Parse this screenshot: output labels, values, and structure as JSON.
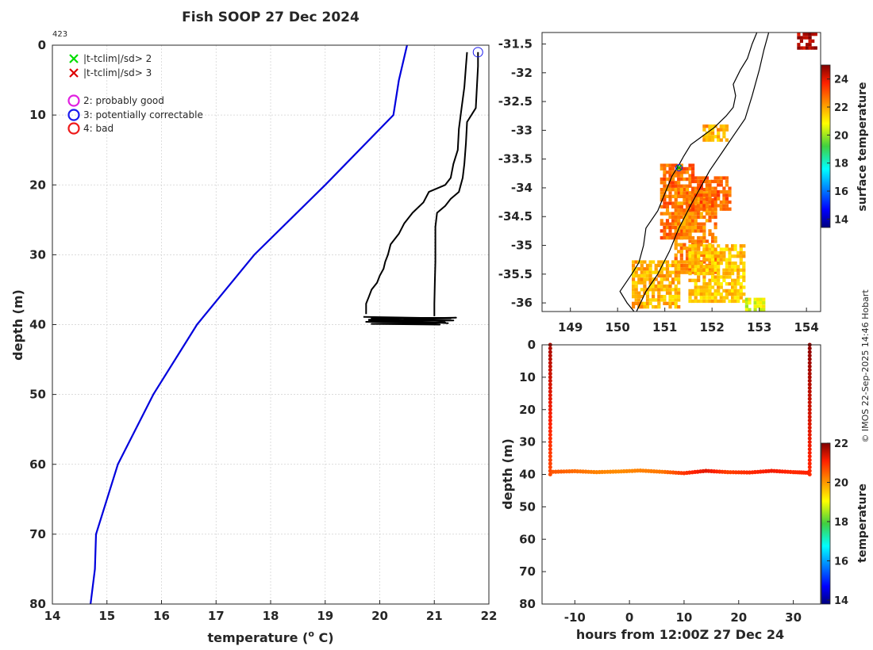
{
  "title": "Fish SOOP 27 Dec 2024",
  "profile_id": "423",
  "copyright": "© IMOS 22-Sep-2025 14:46 Hobart",
  "chart_data": [
    {
      "type": "line",
      "panel": "profile",
      "xlabel": "temperature (",
      "xlabel_sup": "o",
      "xlabel_tail": " C)",
      "ylabel": "depth (m)",
      "xlim": [
        14,
        22
      ],
      "ylim": [
        80,
        0
      ],
      "y_reversed": true,
      "grid": true,
      "xticks": [
        "14",
        "15",
        "16",
        "17",
        "18",
        "19",
        "20",
        "21",
        "22"
      ],
      "yticks": [
        "0",
        "10",
        "20",
        "30",
        "40",
        "50",
        "60",
        "70",
        "80"
      ],
      "legend": [
        {
          "marker": "x",
          "color": "#00dd00",
          "label": "|t-tclim|/sd> 2"
        },
        {
          "marker": "x",
          "color": "#dd0000",
          "label": "|t-tclim|/sd> 3"
        },
        {
          "marker": "o",
          "color": "#e020e0",
          "label": "2: probably good"
        },
        {
          "marker": "o",
          "color": "#1a1aee",
          "label": "3: potentially correctable"
        },
        {
          "marker": "o",
          "color": "#ee1a1a",
          "label": "4: bad"
        }
      ],
      "series": [
        {
          "role": "climatology",
          "color": "#0000dd",
          "points": [
            [
              20.5,
              0
            ],
            [
              20.35,
              5
            ],
            [
              20.25,
              10
            ],
            [
              19.0,
              20
            ],
            [
              17.7,
              30
            ],
            [
              16.65,
              40
            ],
            [
              15.85,
              50
            ],
            [
              15.2,
              60
            ],
            [
              14.8,
              70
            ],
            [
              14.78,
              75
            ],
            [
              14.7,
              80
            ]
          ]
        },
        {
          "role": "descent",
          "color": "#000000",
          "points": [
            [
              21.6,
              1
            ],
            [
              21.58,
              3
            ],
            [
              21.55,
              6
            ],
            [
              21.5,
              9
            ],
            [
              21.45,
              12
            ],
            [
              21.43,
              15
            ],
            [
              21.35,
              17
            ],
            [
              21.3,
              19
            ],
            [
              21.2,
              20
            ],
            [
              20.9,
              21
            ],
            [
              20.8,
              22.5
            ],
            [
              20.6,
              24
            ],
            [
              20.45,
              25.5
            ],
            [
              20.35,
              27
            ],
            [
              20.2,
              28.5
            ],
            [
              20.15,
              30
            ],
            [
              20.1,
              31
            ],
            [
              20.07,
              32
            ],
            [
              20.0,
              33
            ],
            [
              19.95,
              34
            ],
            [
              19.85,
              35
            ],
            [
              19.8,
              36
            ],
            [
              19.75,
              37
            ],
            [
              19.75,
              38.5
            ]
          ]
        },
        {
          "role": "ascent",
          "color": "#000000",
          "points": [
            [
              21.8,
              1
            ],
            [
              21.8,
              3
            ],
            [
              21.78,
              6
            ],
            [
              21.76,
              9
            ],
            [
              21.6,
              11
            ],
            [
              21.58,
              14
            ],
            [
              21.55,
              17
            ],
            [
              21.52,
              19
            ],
            [
              21.45,
              21
            ],
            [
              21.3,
              22
            ],
            [
              21.2,
              23
            ],
            [
              21.05,
              24
            ],
            [
              21.02,
              26
            ],
            [
              21.02,
              28
            ],
            [
              21.02,
              31
            ],
            [
              21.01,
              34
            ],
            [
              21.0,
              37
            ],
            [
              21.0,
              38.8
            ]
          ]
        },
        {
          "role": "bottom-oscillation",
          "color": "#000000",
          "points": [
            [
              19.7,
              38.9
            ],
            [
              21.3,
              39.1
            ],
            [
              19.8,
              39.3
            ],
            [
              21.35,
              39.4
            ],
            [
              19.75,
              39.6
            ],
            [
              21.2,
              39.7
            ],
            [
              19.85,
              39.9
            ],
            [
              21.1,
              40.0
            ],
            [
              19.8,
              39.5
            ],
            [
              21.4,
              39.0
            ],
            [
              19.9,
              39.2
            ],
            [
              21.25,
              39.8
            ],
            [
              19.85,
              39.1
            ],
            [
              21.2,
              39.5
            ]
          ]
        }
      ],
      "flags": [
        {
          "code": "3",
          "x": 21.8,
          "y": 1,
          "color": "#1a1aee"
        }
      ]
    },
    {
      "type": "heatmap",
      "panel": "map",
      "xlim": [
        148.4,
        154.3
      ],
      "ylim": [
        -36.15,
        -31.3
      ],
      "xticks": [
        "149",
        "150",
        "151",
        "152",
        "153",
        "154"
      ],
      "yticks": [
        "-31.5",
        "-32",
        "-32.5",
        "-33",
        "-33.5",
        "-34",
        "-34.5",
        "-35",
        "-35.5",
        "-36"
      ],
      "colorbar_label": "surface temperature",
      "colorbar_range": [
        13.4,
        25
      ],
      "colorbar_ticks": [
        "14",
        "16",
        "18",
        "20",
        "22",
        "24"
      ],
      "coastline": [
        [
          150.35,
          -36.15
        ],
        [
          150.2,
          -36.0
        ],
        [
          150.05,
          -35.8
        ],
        [
          150.3,
          -35.5
        ],
        [
          150.45,
          -35.3
        ],
        [
          150.55,
          -35.0
        ],
        [
          150.6,
          -34.7
        ],
        [
          150.85,
          -34.4
        ],
        [
          150.95,
          -34.2
        ],
        [
          151.05,
          -34.0
        ],
        [
          151.15,
          -33.8
        ],
        [
          151.3,
          -33.6
        ],
        [
          151.4,
          -33.45
        ],
        [
          151.55,
          -33.25
        ],
        [
          151.8,
          -33.1
        ],
        [
          152.05,
          -32.95
        ],
        [
          152.3,
          -32.75
        ],
        [
          152.45,
          -32.6
        ],
        [
          152.5,
          -32.4
        ],
        [
          152.45,
          -32.2
        ],
        [
          152.6,
          -31.95
        ],
        [
          152.75,
          -31.75
        ],
        [
          152.85,
          -31.5
        ],
        [
          152.95,
          -31.3
        ]
      ],
      "isobath": [
        [
          150.4,
          -36.15
        ],
        [
          150.6,
          -35.8
        ],
        [
          150.85,
          -35.5
        ],
        [
          151.1,
          -35.1
        ],
        [
          151.3,
          -34.7
        ],
        [
          151.55,
          -34.3
        ],
        [
          151.75,
          -34.0
        ],
        [
          151.95,
          -33.7
        ],
        [
          152.2,
          -33.4
        ],
        [
          152.45,
          -33.1
        ],
        [
          152.7,
          -32.8
        ],
        [
          152.85,
          -32.4
        ],
        [
          153.0,
          -31.95
        ],
        [
          153.1,
          -31.6
        ],
        [
          153.2,
          -31.3
        ]
      ],
      "sst_patches": [
        {
          "lon": [
            150.9,
            151.6
          ],
          "lat": [
            -34.9,
            -33.6
          ],
          "temp": 22.8
        },
        {
          "lon": [
            151.2,
            152.1
          ],
          "lat": [
            -35.5,
            -34.0
          ],
          "temp": 22.4
        },
        {
          "lon": [
            151.5,
            152.4
          ],
          "lat": [
            -34.4,
            -33.8
          ],
          "temp": 22.9
        },
        {
          "lon": [
            150.3,
            151.3
          ],
          "lat": [
            -36.1,
            -35.3
          ],
          "temp": 21.8
        },
        {
          "lon": [
            151.5,
            152.7
          ],
          "lat": [
            -36.0,
            -35.0
          ],
          "temp": 21.6
        },
        {
          "lon": [
            152.7,
            153.1
          ],
          "lat": [
            -36.15,
            -35.95
          ],
          "temp": 20.6
        },
        {
          "lon": [
            151.8,
            152.3
          ],
          "lat": [
            -33.2,
            -32.9
          ],
          "temp": 21.9
        },
        {
          "lon": [
            153.8,
            154.2
          ],
          "lat": [
            -31.6,
            -31.3
          ],
          "temp": 24.5
        }
      ],
      "track_point": {
        "lon": 151.3,
        "lat": -33.65
      }
    },
    {
      "type": "scatter",
      "panel": "time-depth",
      "xlabel": "hours from 12:00Z 27 Dec 24",
      "ylabel": "depth (m)",
      "xlim": [
        -16,
        35
      ],
      "ylim": [
        80,
        0
      ],
      "y_reversed": true,
      "xticks": [
        "-10",
        "0",
        "10",
        "20",
        "30"
      ],
      "yticks": [
        "0",
        "10",
        "20",
        "30",
        "40",
        "50",
        "60",
        "70",
        "80"
      ],
      "colorbar_label": "temperature",
      "colorbar_range": [
        13.8,
        22
      ],
      "colorbar_ticks": [
        "14",
        "16",
        "18",
        "20",
        "22"
      ],
      "descent": {
        "hour": -14.5,
        "depth": [
          0,
          40
        ],
        "temp": [
          21.7,
          20.7
        ]
      },
      "ascent": {
        "hour": 33.0,
        "depth": [
          0,
          40
        ],
        "temp": [
          21.9,
          21.0
        ]
      },
      "bottom": {
        "hours": [
          -14,
          -10,
          -6,
          -2,
          2,
          6,
          10,
          14,
          18,
          22,
          26,
          30,
          33
        ],
        "depth": [
          39.2,
          39.0,
          39.3,
          39.1,
          38.8,
          39.2,
          39.6,
          38.9,
          39.3,
          39.4,
          38.9,
          39.3,
          39.5
        ],
        "temp": [
          20.6,
          20.4,
          20.2,
          20.1,
          20.2,
          20.3,
          20.9,
          21.3,
          20.8,
          21.0,
          21.2,
          21.0,
          21.1
        ]
      }
    }
  ]
}
